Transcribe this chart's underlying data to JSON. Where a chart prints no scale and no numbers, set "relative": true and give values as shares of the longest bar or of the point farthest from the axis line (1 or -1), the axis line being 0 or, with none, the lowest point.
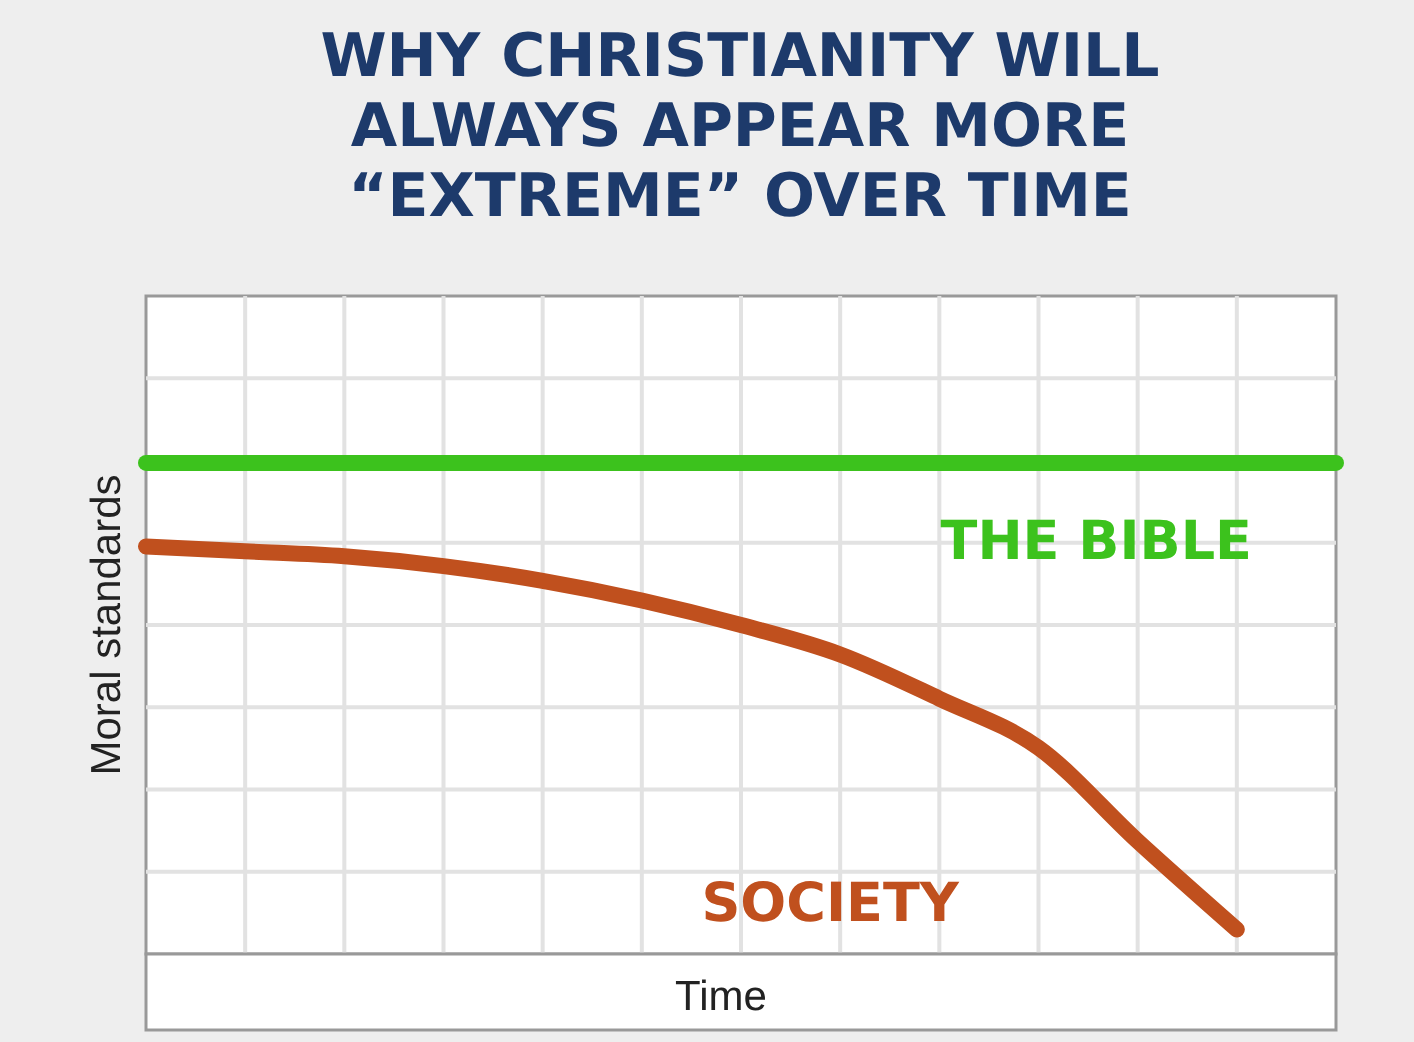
{
  "chart_data": {
    "type": "line",
    "relative": true,
    "title": "WHY CHRISTIANITY WILL ALWAYS APPEAR MORE “EXTREME” OVER TIME",
    "xlabel": "Time",
    "ylabel": "Moral standards",
    "grid": true,
    "marker": "none",
    "line_style": "solid",
    "categories": [
      null,
      null,
      null,
      null,
      null,
      null,
      null,
      null,
      null,
      null,
      null,
      null,
      null
    ],
    "series": [
      {
        "name": "THE BIBLE",
        "color": "#3cc21d",
        "values": [
          1,
          1,
          1,
          1,
          1,
          1,
          1,
          1,
          1,
          1,
          1,
          1,
          1
        ]
      },
      {
        "name": "SOCIETY",
        "color": "#c0501e",
        "values": [
          0.83,
          0.82,
          0.81,
          0.79,
          0.76,
          0.72,
          0.67,
          0.61,
          0.52,
          0.42,
          0.23,
          0.05,
          null
        ]
      }
    ]
  }
}
